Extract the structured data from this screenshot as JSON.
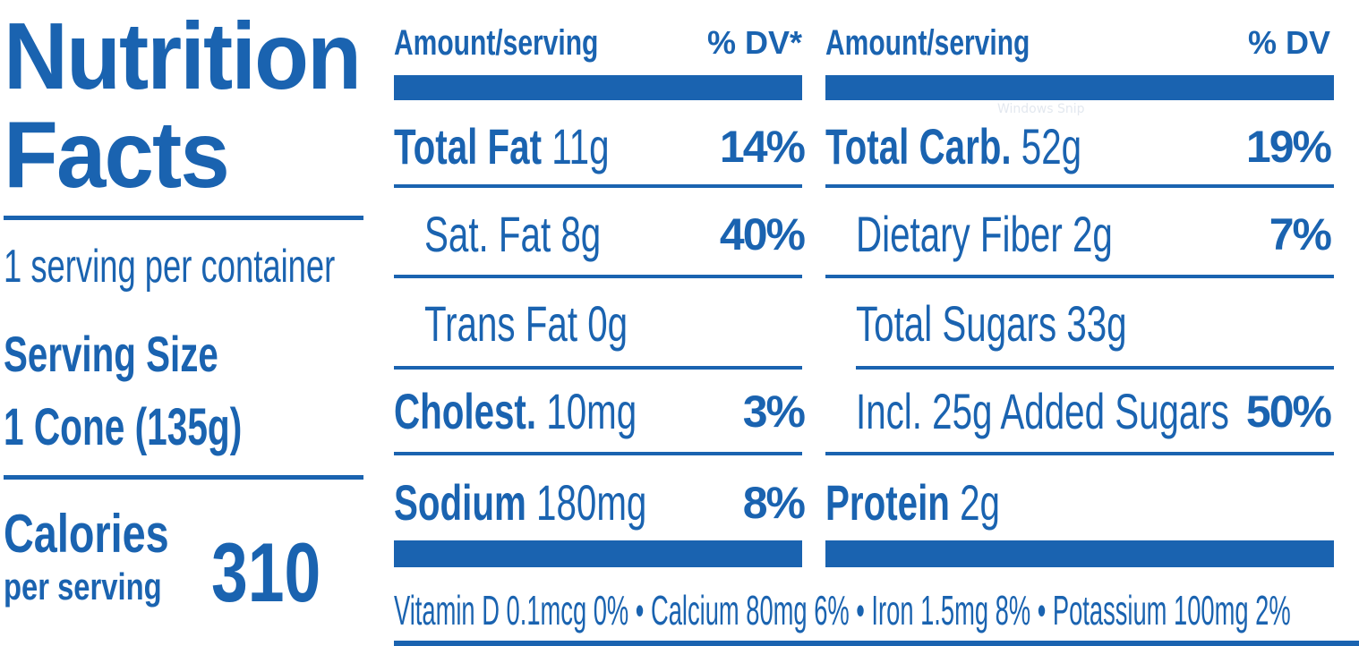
{
  "header": {
    "title_line1": "Nutrition",
    "title_line2": "Facts",
    "servings_per_container": "1 serving per container",
    "serving_size_label": "Serving Size",
    "serving_size_value": "1 Cone (135g)",
    "calories_label": "Calories",
    "calories_sublabel": "per serving",
    "calories_value": "310"
  },
  "left_column": {
    "amount_header": "Amount/serving",
    "dv_header": "% DV*",
    "rows": [
      {
        "name": "Total Fat",
        "amount": "11g",
        "dv": "14%"
      },
      {
        "name": "Sat. Fat 8g",
        "amount": "",
        "dv": "40%"
      },
      {
        "name": "Trans Fat 0g",
        "amount": "",
        "dv": ""
      },
      {
        "name": "Cholest.",
        "amount": "10mg",
        "dv": "3%"
      },
      {
        "name": "Sodium",
        "amount": "180mg",
        "dv": "8%"
      }
    ]
  },
  "right_column": {
    "amount_header": "Amount/serving",
    "dv_header": "% DV",
    "rows": [
      {
        "name": "Total Carb.",
        "amount": "52g",
        "dv": "19%"
      },
      {
        "name": "Dietary Fiber 2g",
        "amount": "",
        "dv": "7%"
      },
      {
        "name": "Total Sugars 33g",
        "amount": "",
        "dv": ""
      },
      {
        "name": "Incl. 25g Added Sugars",
        "amount": "",
        "dv": "50%"
      },
      {
        "name": "Protein",
        "amount": "2g",
        "dv": ""
      }
    ]
  },
  "footer": {
    "micronutrients": "Vitamin D 0.1mcg 0% • Calcium 80mg 6% • Iron 1.5mg 8% • Potassium 100mg 2%"
  },
  "watermark": "Windows Snip",
  "colors": {
    "ink": "#1a63b0",
    "background": "#ffffff"
  }
}
